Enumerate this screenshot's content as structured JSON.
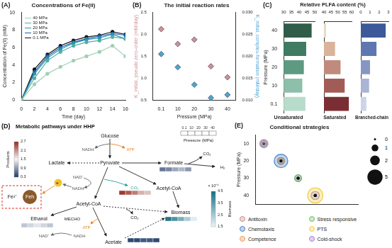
{
  "chart_data": [
    {
      "type": "line",
      "panel": "(A)",
      "title": "Concentrations of Fe(II)",
      "xlabel": "Time (day)",
      "ylabel": "Concentration of Fe(II) (mM)",
      "x": [
        0,
        2,
        4,
        6,
        8,
        10,
        12,
        14,
        16
      ],
      "xlim": [
        0,
        16
      ],
      "xticks": [
        0,
        2,
        4,
        6,
        8,
        10,
        12,
        14,
        16
      ],
      "ylim": [
        0,
        10
      ],
      "yticks": [
        0,
        2,
        4,
        6,
        8,
        10
      ],
      "grid": false,
      "legend": "top-left",
      "marker": "circle",
      "series": [
        {
          "name": "40 MPa",
          "color": "#9fcfb4",
          "values": [
            0,
            1.8,
            3.0,
            3.8,
            4.5,
            5.0,
            5.5,
            6.2,
            5.0
          ]
        },
        {
          "name": "30 MPa",
          "color": "#4fb0a0",
          "values": [
            0,
            2.5,
            4.5,
            5.5,
            6.2,
            6.6,
            6.8,
            7.2,
            7.0
          ]
        },
        {
          "name": "20 MPa",
          "color": "#2a8fb5",
          "values": [
            0,
            3.0,
            4.8,
            5.8,
            6.5,
            6.9,
            7.1,
            7.5,
            7.0
          ]
        },
        {
          "name": "10 MPa",
          "color": "#1d5fa8",
          "values": [
            0,
            3.2,
            5.0,
            6.0,
            6.6,
            7.0,
            7.3,
            7.6,
            7.4
          ]
        },
        {
          "name": "0.1 MPa",
          "color": "#111111",
          "values": [
            0,
            3.5,
            5.2,
            6.2,
            6.8,
            7.2,
            7.4,
            7.8,
            7.5
          ]
        }
      ]
    },
    {
      "type": "scatter",
      "panel": "(B)",
      "title": "The initial reaction rates",
      "xlabel": "Pressure (MPa)",
      "ylabel": "K_initial, pseudo zero-order (mM/day)",
      "y2label": "K_initial, complex-formation (mM/day)",
      "categories": [
        "0.1",
        "10",
        "20",
        "30",
        "40"
      ],
      "ylim": [
        0.5,
        2.5
      ],
      "yticks": [
        0.5,
        {
          "value": 1,
          "label": "1.0"
        },
        1.5,
        {
          "value": 2,
          "label": "2.0"
        },
        2.5
      ],
      "y2lim": [
        0.01,
        0.03
      ],
      "y2ticks": [
        {
          "value": 0.01,
          "label": "0.010"
        },
        {
          "value": 0.015,
          "label": "0.015"
        },
        {
          "value": 0.02,
          "label": "0.020"
        },
        {
          "value": 0.025,
          "label": "0.025"
        },
        {
          "value": 0.03,
          "label": "0.030"
        }
      ],
      "grid": false,
      "marker": "diamond",
      "series": [
        {
          "color": "#d0909a",
          "values": [
            2.12,
            1.78,
            1.88,
            1.27,
            1.02
          ]
        },
        {
          "color": "#49a6d6",
          "axis": "y2",
          "values": [
            0.0205,
            0.0175,
            0.0135,
            0.0105,
            0.0112
          ]
        }
      ]
    },
    {
      "type": "bar",
      "panel": "(C)",
      "title": "Relative PLFA content (%)",
      "orientation": "horizontal",
      "ylabel": "Pressure (MPa)",
      "categories": [
        "40",
        "30",
        "20",
        "10",
        "0.1"
      ],
      "grid": false,
      "groups": [
        {
          "name": "Unsaturated",
          "xlim": [
            30,
            50
          ],
          "xticks": [
            30,
            35,
            40,
            45,
            50
          ],
          "values": [
            48,
            44.5,
            43,
            42,
            44
          ],
          "colors": [
            "#2f5d4a",
            "#3f7a62",
            "#5e9a82",
            "#8dbfaa",
            "#b7dccb"
          ]
        },
        {
          "name": "Saturated",
          "xlim": [
            40,
            60
          ],
          "xticks": [
            40,
            45,
            50,
            55,
            60
          ],
          "values": [
            41.5,
            48,
            52,
            55,
            58
          ],
          "colors": [
            "#ead8c4",
            "#d9b39a",
            "#c08a7c",
            "#a25c58",
            "#7a2e33"
          ]
        },
        {
          "name": "Branched-chain",
          "xlim": [
            0,
            3
          ],
          "xticks": [
            0,
            1,
            2,
            3
          ],
          "values": [
            2.7,
            1.7,
            1.0,
            0.9,
            0.6
          ],
          "colors": [
            "#3c5a9a",
            "#5f77b0",
            "#8696c4",
            "#a9b4d6",
            "#cdd3e8"
          ]
        }
      ]
    },
    {
      "type": "bubble",
      "panel": "(E)",
      "title": "Conditional strategies",
      "ylabel": "Pressure (MPa)",
      "y": [
        10,
        20,
        30,
        40
      ],
      "ylim": [
        5,
        45
      ],
      "yticks": [
        10,
        20,
        30,
        40
      ],
      "tick_labels": "y",
      "grid": false,
      "legend": "bottom",
      "size_legend": [
        0,
        1,
        2,
        5
      ],
      "series": [
        {
          "name": "Antitoxin",
          "color": "#c98f86",
          "sizes": [
            1.5,
            0,
            0,
            0
          ]
        },
        {
          "name": "Chemotaxis",
          "color": "#4a7fc9",
          "sizes": [
            0.8,
            4,
            0,
            0
          ]
        },
        {
          "name": "Competence",
          "color": "#ef9a5a",
          "sizes": [
            0,
            1,
            0,
            0
          ]
        },
        {
          "name": "Stress responsive",
          "color": "#6fbf62",
          "sizes": [
            0,
            1,
            1,
            0
          ]
        },
        {
          "name": "PTS",
          "color": "#f2cf4a",
          "sizes": [
            0,
            0,
            0,
            5
          ]
        },
        {
          "name": "Cold-shock",
          "color": "#a77fd6",
          "sizes": [
            0,
            1,
            1,
            1.5
          ]
        }
      ]
    }
  ],
  "diagram": {
    "panel": "(D)",
    "title": "Metabolic pathways under HHP",
    "pressure_legend": {
      "label": "Pressure (MPa)",
      "levels": [
        "0.1",
        "10",
        "20",
        "30",
        "40"
      ]
    },
    "products_scale": {
      "label": "Products",
      "range": [
        0.3,
        2.7
      ],
      "ticks": [
        0.3,
        0.9,
        1.5,
        2.1,
        2.7
      ]
    },
    "biomass_scale": {
      "label": "Biomass",
      "unit": "× 10⁻⁴",
      "range": [
        1.5,
        4.5
      ],
      "ticks": [
        1.5,
        2.5,
        3.5,
        4.5
      ]
    },
    "nodes": [
      {
        "label": "Glucose"
      },
      {
        "label": "NADH"
      },
      {
        "label": "ATP"
      },
      {
        "label": "Pyruvate"
      },
      {
        "label": "Lactate"
      },
      {
        "label": "Formate",
        "scale": "products",
        "values": [
          0.7,
          0.8,
          1.0,
          1.1,
          0.9
        ]
      },
      {
        "label": "CO₂"
      },
      {
        "label": "H₂"
      },
      {
        "label": "NAD⁺"
      },
      {
        "label": "NADH"
      },
      {
        "label": "e⁻"
      },
      {
        "label": "Fe²⁺"
      },
      {
        "label": "Feh"
      },
      {
        "label": "CO₂",
        "scale": "products",
        "values": [
          2.6,
          2.4,
          2.2,
          1.9,
          1.8
        ]
      },
      {
        "label": "Acetyl-CoA"
      },
      {
        "label": "Acetyl-CoA"
      },
      {
        "label": "Ethanol",
        "scale": "products",
        "values": [
          1.2,
          1.3,
          1.4,
          1.3,
          1.2
        ]
      },
      {
        "label": "MECHO"
      },
      {
        "label": "NAD⁺"
      },
      {
        "label": "NADH"
      },
      {
        "label": "Biomass",
        "scale": "biomass",
        "values": [
          4.3,
          3.7,
          3.1,
          2.4,
          1.7
        ]
      },
      {
        "label": "CO₂"
      },
      {
        "label": "ATP"
      },
      {
        "label": "Acetate",
        "scale": "products",
        "values": [
          0.4,
          0.4,
          0.5,
          0.5,
          0.4
        ]
      }
    ]
  }
}
